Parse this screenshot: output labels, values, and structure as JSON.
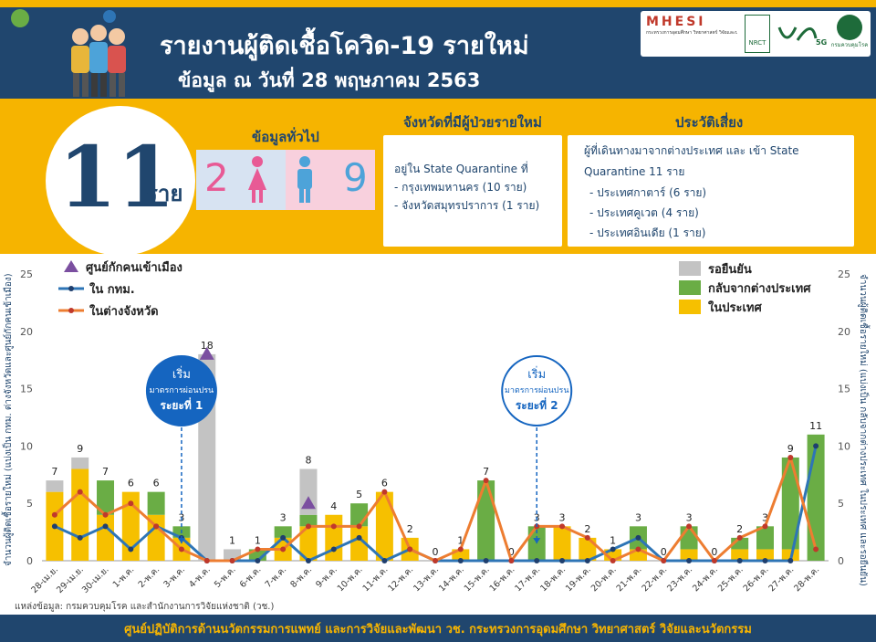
{
  "header": {
    "title": "รายงานผู้ติดเชื้อโควิด-19 รายใหม่",
    "subtitle": "ข้อมูล ณ วันที่ 28 พฤษภาคม 2563",
    "logo_mhesi": "MHESI",
    "logo_mhesi_caption": "กระทรวงการอุดมศึกษา วิทยาศาสตร์ วิจัยและนวัตกรรม",
    "logo_nrct": "NRCT",
    "logo_5g": "5G",
    "logo_ddc_caption": "กรมควบคุมโรค"
  },
  "summary": {
    "total": "11",
    "unit": "ราย",
    "general_heading": "ข้อมูลทั่วไป",
    "female_count": "2",
    "male_count": "9"
  },
  "province_box": {
    "heading": "จังหวัดที่มีผู้ป่วยรายใหม่",
    "lines": [
      "อยู่ใน State Quarantine ที่",
      "- กรุงเทพมหานคร (10 ราย)",
      "- จังหวัดสมุทรปราการ (1 ราย)"
    ]
  },
  "risk_box": {
    "heading": "ประวัติเสี่ยง",
    "lines": [
      "ผู้ที่เดินทางมาจากต่างประเทศ และ เข้า State",
      "Quarantine 11 ราย",
      "- ประเทศกาตาร์ (6 ราย)",
      "- ประเทศคูเวต (4 ราย)",
      "- ประเทศอินเดีย (1 ราย)"
    ]
  },
  "chart_data": {
    "type": "bar",
    "categories": [
      "28-เม.ย.",
      "29-เม.ย.",
      "30-เม.ย.",
      "1-พ.ค.",
      "2-พ.ค.",
      "3-พ.ค.",
      "4-พ.ค.",
      "5-พ.ค.",
      "6-พ.ค.",
      "7-พ.ค.",
      "8-พ.ค.",
      "9-พ.ค.",
      "10-พ.ค.",
      "11-พ.ค.",
      "12-พ.ค.",
      "13-พ.ค.",
      "14-พ.ค.",
      "15-พ.ค.",
      "16-พ.ค.",
      "17-พ.ค.",
      "18-พ.ค.",
      "19-พ.ค.",
      "20-พ.ค.",
      "21-พ.ค.",
      "22-พ.ค.",
      "23-พ.ค.",
      "24-พ.ค.",
      "25-พ.ค.",
      "26-พ.ค.",
      "27-พ.ค.",
      "28-พ.ค."
    ],
    "totals": [
      7,
      9,
      7,
      6,
      6,
      3,
      18,
      1,
      1,
      3,
      8,
      4,
      5,
      6,
      2,
      0,
      1,
      7,
      0,
      3,
      3,
      2,
      1,
      3,
      0,
      3,
      0,
      2,
      3,
      9,
      11
    ],
    "series": [
      {
        "name": "ในประเทศ",
        "color": "#f6c000",
        "values": [
          6,
          8,
          4,
          6,
          4,
          2,
          0,
          0,
          0,
          2,
          3,
          4,
          3,
          6,
          2,
          0,
          1,
          0,
          0,
          0,
          3,
          2,
          1,
          1,
          0,
          1,
          0,
          1,
          1,
          1,
          0
        ]
      },
      {
        "name": "กลับจากต่างประเทศ",
        "color": "#6aad45",
        "values": [
          0,
          0,
          3,
          0,
          2,
          1,
          0,
          0,
          1,
          1,
          1,
          0,
          2,
          0,
          0,
          0,
          0,
          7,
          0,
          3,
          0,
          0,
          0,
          2,
          0,
          2,
          0,
          1,
          2,
          8,
          11
        ]
      },
      {
        "name": "รอยืนยัน",
        "color": "#c3c3c3",
        "values": [
          1,
          1,
          0,
          0,
          0,
          0,
          18,
          1,
          0,
          0,
          4,
          0,
          0,
          0,
          0,
          0,
          0,
          0,
          0,
          0,
          0,
          0,
          0,
          0,
          0,
          0,
          0,
          0,
          0,
          0,
          0
        ]
      }
    ],
    "lines": [
      {
        "name": "ใน กทม.",
        "color": "#2e75b6",
        "values": [
          3,
          2,
          3,
          1,
          3,
          2,
          0,
          0,
          0,
          2,
          0,
          1,
          2,
          0,
          1,
          0,
          0,
          0,
          0,
          0,
          0,
          0,
          1,
          2,
          0,
          0,
          0,
          0,
          0,
          0,
          10
        ]
      },
      {
        "name": "ในต่างจังหวัด",
        "color": "#ed7d31",
        "values": [
          4,
          6,
          4,
          5,
          3,
          1,
          0,
          0,
          1,
          1,
          3,
          3,
          3,
          6,
          1,
          0,
          1,
          7,
          0,
          3,
          3,
          2,
          0,
          1,
          0,
          3,
          0,
          2,
          3,
          9,
          1
        ]
      }
    ],
    "markers": [
      {
        "name": "ศูนย์กักคนเข้าเมือง",
        "color": "#7b4fa0",
        "points": [
          {
            "x": "4-พ.ค.",
            "y": 18
          },
          {
            "x": "8-พ.ค.",
            "y": 5
          }
        ]
      }
    ],
    "ylim": [
      0,
      25
    ],
    "yticks": [
      0,
      5,
      10,
      15,
      20,
      25
    ],
    "ylabel_left": "จำนวนผู้ติดเชื้อรายใหม่ (แบ่งเป็น กทม. ต่างจังหวัดและศูนย์กักคนเข้าเมือง)",
    "ylabel_right": "จำนวนผู้ติดเชื้อรายใหม่ (แบ่งเป็น กลับจากต่างประเทศ ในประเทศ และรอยืนยัน)",
    "grid": false,
    "callouts": [
      {
        "x": "3-พ.ค.",
        "line1": "เริ่ม",
        "line2": "มาตรการผ่อนปรน",
        "line3": "ระยะที่ 1"
      },
      {
        "x": "17-พ.ค.",
        "line1": "เริ่ม",
        "line2": "มาตรการผ่อนปรน",
        "line3": "ระยะที่ 2"
      }
    ]
  },
  "source": "แหล่งข้อมูล: กรมควบคุมโรค และสำนักงานการวิจัยแห่งชาติ (วช.)",
  "footer": "ศูนย์ปฏิบัติการด้านนวัตกรรมการแพทย์ และการวิจัยและพัฒนา วช. กระทรวงการอุดมศึกษา วิทยาศาสตร์ วิจัยและนวัตกรรม"
}
